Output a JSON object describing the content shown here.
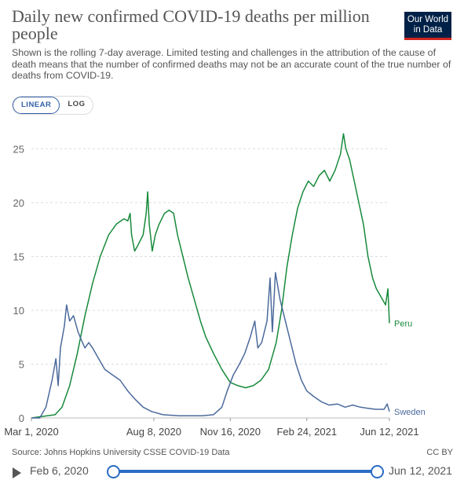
{
  "header": {
    "title": "Daily new confirmed COVID-19 deaths per million people",
    "subtitle": "Shown is the rolling 7-day average. Limited testing and challenges in the attribution of the cause of death means that the number of confirmed deaths may not be an accurate count of the true number of deaths from COVID-19.",
    "logo_line1": "Our World",
    "logo_line2": "in Data"
  },
  "scale_toggle": {
    "linear": "LINEAR",
    "log": "LOG",
    "selected": "LINEAR"
  },
  "footer": {
    "source": "Source: Johns Hopkins University CSSE COVID-19 Data",
    "license": "CC BY"
  },
  "timeline": {
    "start_label": "Feb 6, 2020",
    "end_label": "Jun 12, 2021",
    "start_fraction": 0,
    "end_fraction": 1
  },
  "colors": {
    "Peru": "#178a3b",
    "Sweden": "#4c6a9c",
    "accent": "#2b6cc4",
    "grid": "#dddddd"
  },
  "chart_data": {
    "type": "line",
    "title": "Daily new confirmed COVID-19 deaths per million people",
    "x_ticks": [
      "Mar 1, 2020",
      "Aug 8, 2020",
      "Nov 16, 2020",
      "Feb 24, 2021",
      "Jun 12, 2021"
    ],
    "xlim": [
      "2020-03-01",
      "2021-06-12"
    ],
    "y_ticks": [
      0,
      5,
      10,
      15,
      20,
      25
    ],
    "ylim": [
      0,
      27
    ],
    "grid": true,
    "series": [
      {
        "name": "Peru",
        "points": [
          [
            "2020-03-01",
            0
          ],
          [
            "2020-04-01",
            0.3
          ],
          [
            "2020-04-10",
            1
          ],
          [
            "2020-04-20",
            3
          ],
          [
            "2020-04-30",
            6
          ],
          [
            "2020-05-10",
            9.5
          ],
          [
            "2020-05-20",
            12.5
          ],
          [
            "2020-05-30",
            15
          ],
          [
            "2020-06-10",
            17
          ],
          [
            "2020-06-20",
            18
          ],
          [
            "2020-06-30",
            18.5
          ],
          [
            "2020-07-05",
            18.3
          ],
          [
            "2020-07-08",
            19
          ],
          [
            "2020-07-10",
            17
          ],
          [
            "2020-07-14",
            15.5
          ],
          [
            "2020-07-18",
            16
          ],
          [
            "2020-07-25",
            17
          ],
          [
            "2020-07-29",
            19
          ],
          [
            "2020-07-31",
            21
          ],
          [
            "2020-08-02",
            18
          ],
          [
            "2020-08-06",
            15.5
          ],
          [
            "2020-08-10",
            17
          ],
          [
            "2020-08-15",
            18
          ],
          [
            "2020-08-22",
            19
          ],
          [
            "2020-08-28",
            19.3
          ],
          [
            "2020-09-03",
            19
          ],
          [
            "2020-09-08",
            17
          ],
          [
            "2020-09-15",
            15
          ],
          [
            "2020-09-22",
            13
          ],
          [
            "2020-09-30",
            11
          ],
          [
            "2020-10-08",
            9
          ],
          [
            "2020-10-15",
            7.5
          ],
          [
            "2020-10-25",
            6
          ],
          [
            "2020-11-05",
            4.5
          ],
          [
            "2020-11-16",
            3.3
          ],
          [
            "2020-11-26",
            3
          ],
          [
            "2020-12-06",
            2.8
          ],
          [
            "2020-12-16",
            3
          ],
          [
            "2020-12-26",
            3.5
          ],
          [
            "2021-01-05",
            4.5
          ],
          [
            "2021-01-15",
            7
          ],
          [
            "2021-01-22",
            10
          ],
          [
            "2021-01-29",
            14
          ],
          [
            "2021-02-05",
            17
          ],
          [
            "2021-02-12",
            19.5
          ],
          [
            "2021-02-19",
            21
          ],
          [
            "2021-02-26",
            22
          ],
          [
            "2021-03-05",
            21.5
          ],
          [
            "2021-03-12",
            22.5
          ],
          [
            "2021-03-19",
            23
          ],
          [
            "2021-03-26",
            22
          ],
          [
            "2021-04-02",
            23
          ],
          [
            "2021-04-09",
            24.5
          ],
          [
            "2021-04-13",
            26.4
          ],
          [
            "2021-04-16",
            25
          ],
          [
            "2021-04-21",
            24
          ],
          [
            "2021-04-27",
            22
          ],
          [
            "2021-05-03",
            20
          ],
          [
            "2021-05-09",
            18
          ],
          [
            "2021-05-15",
            15
          ],
          [
            "2021-05-21",
            13
          ],
          [
            "2021-05-26",
            12
          ],
          [
            "2021-05-30",
            11.5
          ],
          [
            "2021-06-03",
            11
          ],
          [
            "2021-06-07",
            10.5
          ],
          [
            "2021-06-10",
            12
          ],
          [
            "2021-06-12",
            8.8
          ]
        ]
      },
      {
        "name": "Sweden",
        "points": [
          [
            "2020-03-01",
            0
          ],
          [
            "2020-03-12",
            0
          ],
          [
            "2020-03-20",
            1
          ],
          [
            "2020-03-28",
            3.5
          ],
          [
            "2020-04-02",
            5.5
          ],
          [
            "2020-04-05",
            3
          ],
          [
            "2020-04-08",
            6.5
          ],
          [
            "2020-04-13",
            8.5
          ],
          [
            "2020-04-16",
            10.5
          ],
          [
            "2020-04-20",
            9
          ],
          [
            "2020-04-25",
            9.5
          ],
          [
            "2020-05-01",
            8
          ],
          [
            "2020-05-05",
            7.3
          ],
          [
            "2020-05-10",
            6.5
          ],
          [
            "2020-05-15",
            7
          ],
          [
            "2020-05-20",
            6.5
          ],
          [
            "2020-05-28",
            5.5
          ],
          [
            "2020-06-05",
            4.5
          ],
          [
            "2020-06-15",
            4
          ],
          [
            "2020-06-25",
            3.5
          ],
          [
            "2020-07-05",
            2.5
          ],
          [
            "2020-07-15",
            1.7
          ],
          [
            "2020-07-25",
            1
          ],
          [
            "2020-08-05",
            0.6
          ],
          [
            "2020-08-20",
            0.3
          ],
          [
            "2020-09-10",
            0.2
          ],
          [
            "2020-10-10",
            0.2
          ],
          [
            "2020-10-25",
            0.3
          ],
          [
            "2020-11-05",
            1
          ],
          [
            "2020-11-12",
            2.5
          ],
          [
            "2020-11-20",
            4
          ],
          [
            "2020-11-28",
            5
          ],
          [
            "2020-12-05",
            6
          ],
          [
            "2020-12-12",
            7.5
          ],
          [
            "2020-12-18",
            9
          ],
          [
            "2020-12-22",
            6.5
          ],
          [
            "2020-12-27",
            7
          ],
          [
            "2021-01-03",
            9
          ],
          [
            "2021-01-07",
            13
          ],
          [
            "2021-01-10",
            8
          ],
          [
            "2021-01-14",
            13.5
          ],
          [
            "2021-01-20",
            11
          ],
          [
            "2021-01-27",
            9
          ],
          [
            "2021-02-03",
            7
          ],
          [
            "2021-02-10",
            5
          ],
          [
            "2021-02-17",
            3.5
          ],
          [
            "2021-02-24",
            2.5
          ],
          [
            "2021-03-05",
            2
          ],
          [
            "2021-03-15",
            1.5
          ],
          [
            "2021-03-25",
            1.2
          ],
          [
            "2021-04-05",
            1.3
          ],
          [
            "2021-04-15",
            1
          ],
          [
            "2021-04-25",
            1.2
          ],
          [
            "2021-05-05",
            1
          ],
          [
            "2021-05-15",
            0.9
          ],
          [
            "2021-05-25",
            0.8
          ],
          [
            "2021-06-05",
            0.8
          ],
          [
            "2021-06-09",
            1.3
          ],
          [
            "2021-06-12",
            0.6
          ]
        ]
      }
    ]
  }
}
